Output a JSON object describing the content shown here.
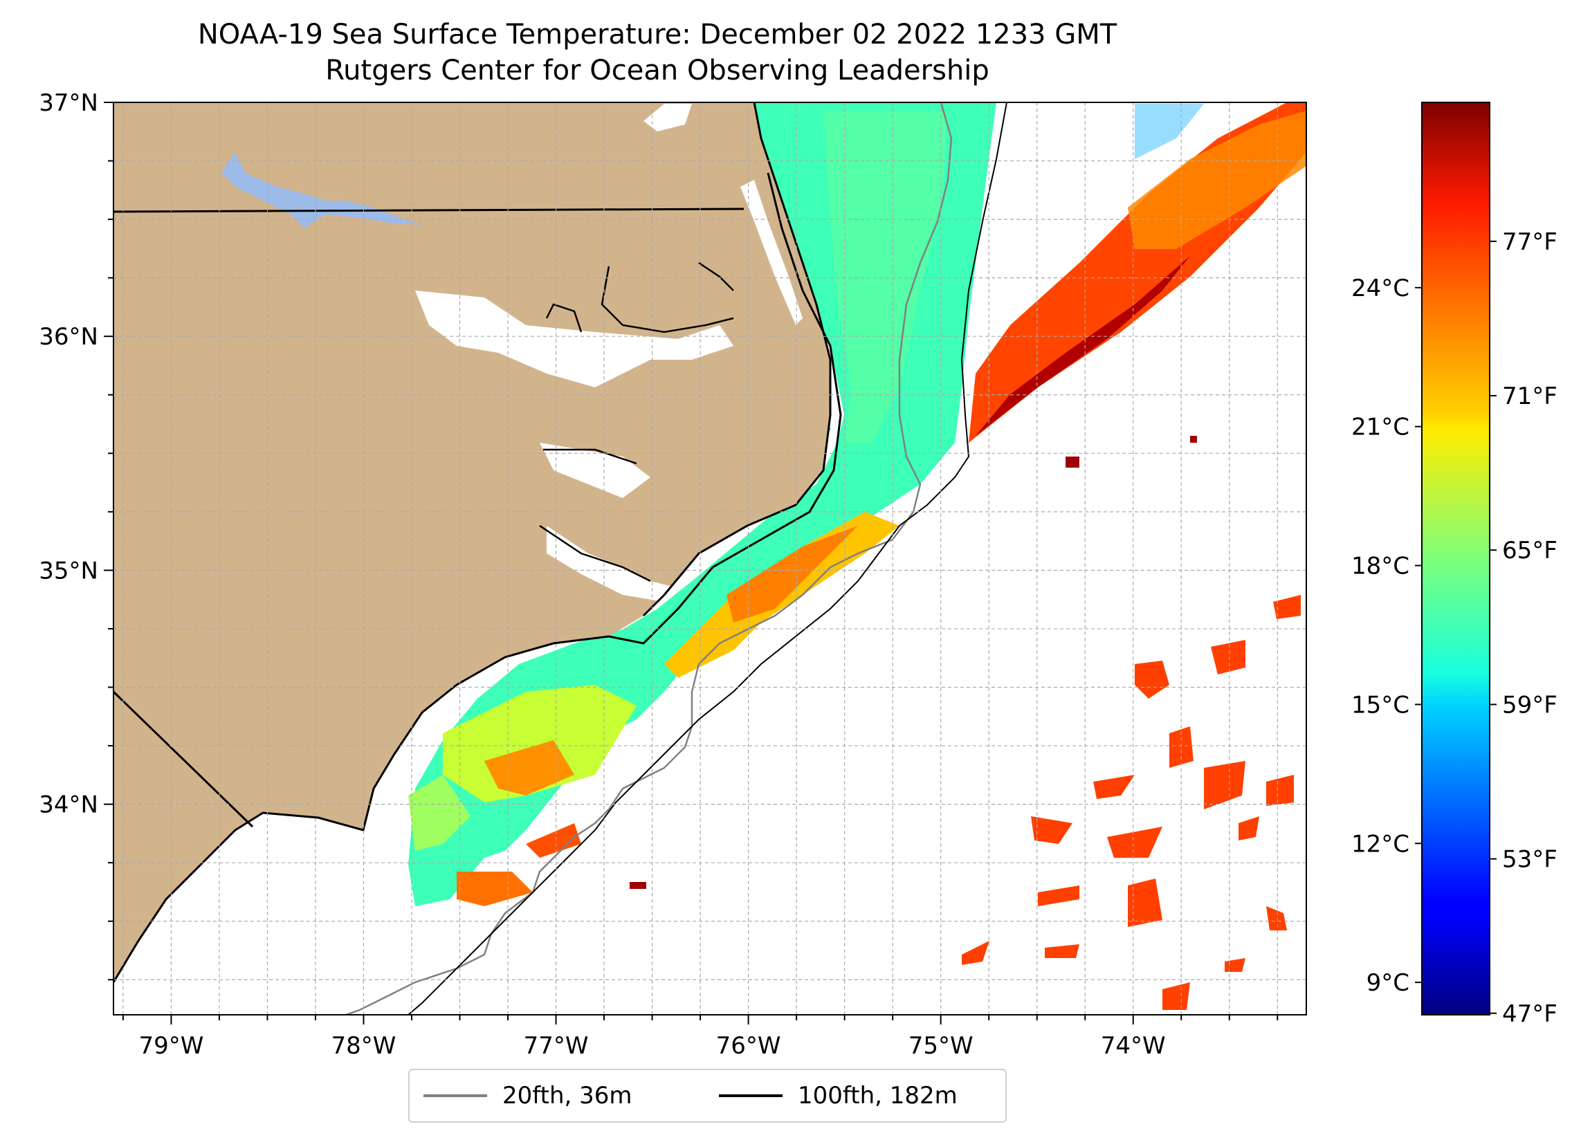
{
  "title": {
    "line1": "NOAA-19 Sea Surface Temperature: December 02 2022 1233 GMT",
    "line2": "Rutgers Center for Ocean Observing Leadership"
  },
  "map": {
    "lon_range": [
      -79.3,
      -73.1
    ],
    "lat_range": [
      33.1,
      37.0
    ],
    "land_color": "#d2b48c",
    "lake_color": "#9dbbe8",
    "grid": true,
    "x_ticks": [
      {
        "value": -79,
        "label": "79°W"
      },
      {
        "value": -78,
        "label": "78°W"
      },
      {
        "value": -77,
        "label": "77°W"
      },
      {
        "value": -76,
        "label": "76°W"
      },
      {
        "value": -75,
        "label": "75°W"
      },
      {
        "value": -74,
        "label": "74°W"
      }
    ],
    "y_ticks": [
      {
        "value": 34,
        "label": "34°N"
      },
      {
        "value": 35,
        "label": "35°N"
      },
      {
        "value": 36,
        "label": "36°N"
      },
      {
        "value": 37,
        "label": "37°N"
      }
    ]
  },
  "colorbar": {
    "colormap": "jet",
    "range_c": [
      8.3,
      28.0
    ],
    "celsius_ticks": [
      {
        "value": 9,
        "label": "9°C"
      },
      {
        "value": 12,
        "label": "12°C"
      },
      {
        "value": 15,
        "label": "15°C"
      },
      {
        "value": 18,
        "label": "18°C"
      },
      {
        "value": 21,
        "label": "21°C"
      },
      {
        "value": 24,
        "label": "24°C"
      }
    ],
    "fahrenheit_ticks": [
      {
        "value": 47,
        "label": "47°F"
      },
      {
        "value": 53,
        "label": "53°F"
      },
      {
        "value": 59,
        "label": "59°F"
      },
      {
        "value": 65,
        "label": "65°F"
      },
      {
        "value": 71,
        "label": "71°F"
      },
      {
        "value": 77,
        "label": "77°F"
      }
    ]
  },
  "legend": {
    "placement": "below map",
    "items": [
      {
        "label": "20fth, 36m",
        "color": "#808080"
      },
      {
        "label": "100fth, 182m",
        "color": "#000000"
      }
    ]
  }
}
